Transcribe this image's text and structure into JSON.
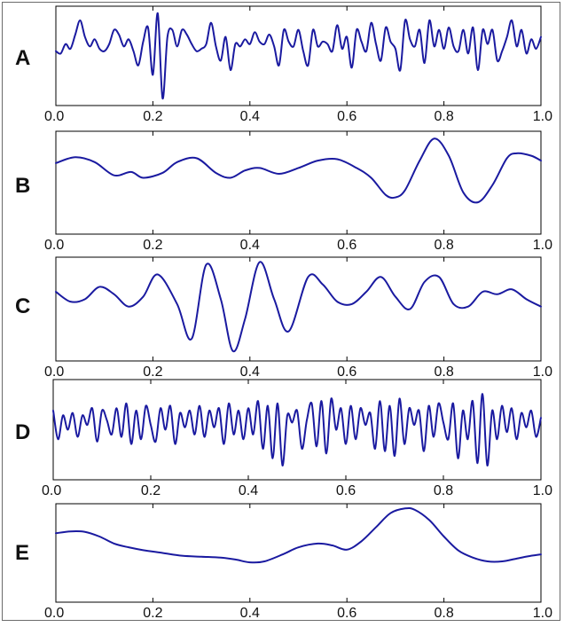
{
  "chart_data": [
    {
      "type": "line",
      "panel_label": "A",
      "xlim": [
        0.0,
        1.0
      ],
      "x_ticks": [
        "0.0",
        "0.2",
        "0.4",
        "0.6",
        "0.8",
        "1.0"
      ],
      "line_color": "#1a1aa0",
      "y_ticks_shown": false,
      "series": [
        {
          "x": [
            0.0,
            0.01,
            0.02,
            0.03,
            0.04,
            0.05,
            0.06,
            0.07,
            0.08,
            0.09,
            0.1,
            0.11,
            0.12,
            0.13,
            0.14,
            0.15,
            0.16,
            0.17,
            0.18,
            0.19,
            0.2,
            0.21,
            0.22,
            0.23,
            0.24,
            0.25,
            0.26,
            0.27,
            0.28,
            0.29,
            0.3,
            0.31,
            0.32,
            0.33,
            0.34,
            0.35,
            0.36,
            0.37,
            0.38,
            0.39,
            0.4,
            0.41,
            0.42,
            0.43,
            0.44,
            0.45,
            0.46,
            0.47,
            0.48,
            0.49,
            0.5,
            0.51,
            0.52,
            0.53,
            0.54,
            0.55,
            0.56,
            0.57,
            0.58,
            0.59,
            0.6,
            0.61,
            0.62,
            0.63,
            0.64,
            0.65,
            0.66,
            0.67,
            0.68,
            0.69,
            0.7,
            0.71,
            0.72,
            0.73,
            0.74,
            0.75,
            0.76,
            0.77,
            0.78,
            0.79,
            0.8,
            0.81,
            0.82,
            0.83,
            0.84,
            0.85,
            0.86,
            0.87,
            0.88,
            0.89,
            0.9,
            0.91,
            0.92,
            0.93,
            0.94,
            0.95,
            0.96,
            0.97,
            0.98,
            0.99,
            1.0
          ],
          "y": [
            0.1,
            0.05,
            0.25,
            0.15,
            0.45,
            0.75,
            0.4,
            0.2,
            0.35,
            0.15,
            0.1,
            0.25,
            0.55,
            0.45,
            0.2,
            0.35,
            0.1,
            -0.2,
            0.3,
            0.6,
            -0.4,
            0.9,
            -0.9,
            0.4,
            0.55,
            0.2,
            0.55,
            0.45,
            0.25,
            0.1,
            0.15,
            0.25,
            0.7,
            0.2,
            -0.1,
            0.4,
            -0.3,
            0.25,
            0.2,
            0.35,
            0.25,
            0.5,
            0.3,
            0.25,
            0.45,
            0.2,
            -0.2,
            0.55,
            0.3,
            0.2,
            0.55,
            0.1,
            -0.2,
            0.55,
            0.2,
            0.3,
            0.25,
            0.1,
            0.65,
            0.15,
            0.4,
            -0.25,
            0.55,
            0.3,
            0.1,
            0.7,
            0.25,
            -0.1,
            0.6,
            0.3,
            0.15,
            -0.3,
            0.75,
            0.35,
            0.2,
            0.55,
            -0.15,
            0.75,
            0.2,
            0.55,
            0.15,
            0.6,
            0.2,
            0.1,
            0.55,
            0.05,
            0.6,
            -0.3,
            0.55,
            0.25,
            0.55,
            -0.1,
            0.1,
            0.4,
            0.75,
            0.2,
            0.55,
            0.05,
            0.35,
            0.15,
            0.4
          ]
        }
      ]
    },
    {
      "type": "line",
      "panel_label": "B",
      "xlim": [
        0.0,
        1.0
      ],
      "x_ticks": [
        "0.0",
        "0.2",
        "0.4",
        "0.6",
        "0.8",
        "1.0"
      ],
      "line_color": "#1a1aa0",
      "y_ticks_shown": false,
      "series": [
        {
          "x": [
            0.0,
            0.04,
            0.08,
            0.12,
            0.155,
            0.18,
            0.22,
            0.25,
            0.29,
            0.33,
            0.36,
            0.39,
            0.42,
            0.46,
            0.5,
            0.54,
            0.58,
            0.62,
            0.65,
            0.68,
            0.7,
            0.72,
            0.75,
            0.78,
            0.81,
            0.84,
            0.87,
            0.9,
            0.93,
            0.95,
            0.98,
            1.0
          ],
          "y": [
            0.4,
            0.52,
            0.42,
            0.15,
            0.22,
            0.1,
            0.2,
            0.42,
            0.5,
            0.2,
            0.1,
            0.25,
            0.3,
            0.18,
            0.3,
            0.45,
            0.48,
            0.3,
            0.1,
            -0.25,
            -0.3,
            -0.15,
            0.45,
            0.9,
            0.55,
            -0.2,
            -0.4,
            -0.05,
            0.5,
            0.6,
            0.55,
            0.45
          ]
        }
      ]
    },
    {
      "type": "line",
      "panel_label": "C",
      "xlim": [
        0.0,
        1.0
      ],
      "x_ticks": [
        "0.0",
        "0.2",
        "0.4",
        "0.6",
        "0.8",
        "1.0"
      ],
      "line_color": "#1a1aa0",
      "y_ticks_shown": false,
      "series": [
        {
          "x": [
            0.0,
            0.03,
            0.06,
            0.09,
            0.12,
            0.15,
            0.18,
            0.21,
            0.25,
            0.28,
            0.31,
            0.34,
            0.365,
            0.39,
            0.42,
            0.45,
            0.48,
            0.52,
            0.55,
            0.58,
            0.61,
            0.64,
            0.67,
            0.7,
            0.73,
            0.76,
            0.79,
            0.82,
            0.85,
            0.88,
            0.91,
            0.94,
            0.97,
            1.0
          ],
          "y": [
            0.35,
            0.15,
            0.2,
            0.45,
            0.3,
            0.05,
            0.25,
            0.7,
            0.1,
            -0.6,
            0.9,
            0.2,
            -0.85,
            -0.2,
            0.95,
            0.2,
            -0.45,
            0.65,
            0.5,
            0.15,
            0.1,
            0.35,
            0.65,
            0.25,
            0.0,
            0.55,
            0.65,
            0.1,
            0.05,
            0.35,
            0.3,
            0.4,
            0.2,
            0.05
          ]
        }
      ]
    },
    {
      "type": "line",
      "panel_label": "D",
      "xlim": [
        0.0,
        1.0
      ],
      "x_ticks": [
        "0.0",
        "0.2",
        "0.4",
        "0.6",
        "0.8",
        "1.0"
      ],
      "line_color": "#1a1aa0",
      "y_ticks_shown": false,
      "series": [
        {
          "x": [
            0.0,
            0.01,
            0.02,
            0.03,
            0.04,
            0.05,
            0.06,
            0.07,
            0.08,
            0.09,
            0.1,
            0.11,
            0.12,
            0.13,
            0.14,
            0.15,
            0.16,
            0.17,
            0.18,
            0.19,
            0.2,
            0.21,
            0.22,
            0.23,
            0.24,
            0.25,
            0.26,
            0.27,
            0.28,
            0.29,
            0.3,
            0.31,
            0.32,
            0.33,
            0.34,
            0.35,
            0.36,
            0.37,
            0.38,
            0.39,
            0.4,
            0.41,
            0.42,
            0.43,
            0.44,
            0.45,
            0.46,
            0.47,
            0.48,
            0.49,
            0.5,
            0.51,
            0.52,
            0.53,
            0.54,
            0.55,
            0.56,
            0.57,
            0.58,
            0.59,
            0.6,
            0.61,
            0.62,
            0.63,
            0.64,
            0.65,
            0.66,
            0.67,
            0.68,
            0.69,
            0.7,
            0.71,
            0.72,
            0.73,
            0.74,
            0.75,
            0.76,
            0.77,
            0.78,
            0.79,
            0.8,
            0.81,
            0.82,
            0.83,
            0.84,
            0.85,
            0.86,
            0.87,
            0.88,
            0.89,
            0.9,
            0.91,
            0.92,
            0.93,
            0.94,
            0.95,
            0.96,
            0.97,
            0.98,
            0.99,
            1.0
          ],
          "y": [
            0.4,
            -0.2,
            0.3,
            0.0,
            0.35,
            -0.15,
            0.3,
            0.1,
            0.45,
            -0.25,
            0.4,
            0.2,
            -0.1,
            0.45,
            -0.15,
            0.55,
            -0.3,
            0.4,
            -0.2,
            0.5,
            0.1,
            -0.25,
            0.45,
            0.0,
            0.5,
            -0.3,
            0.35,
            0.05,
            0.4,
            -0.1,
            0.5,
            -0.15,
            0.4,
            0.05,
            0.45,
            -0.3,
            0.55,
            -0.1,
            0.4,
            -0.2,
            0.45,
            -0.1,
            0.6,
            -0.4,
            0.5,
            -0.6,
            0.55,
            -0.75,
            0.3,
            0.15,
            0.4,
            -0.4,
            0.2,
            0.55,
            -0.35,
            0.6,
            -0.5,
            0.65,
            0.0,
            0.45,
            -0.3,
            0.5,
            -0.2,
            0.45,
            0.1,
            0.35,
            -0.4,
            0.6,
            -0.45,
            0.5,
            -0.55,
            0.65,
            -0.3,
            0.45,
            0.1,
            0.4,
            -0.45,
            0.5,
            -0.15,
            0.55,
            0.15,
            -0.2,
            0.55,
            -0.6,
            0.4,
            -0.2,
            0.6,
            -0.7,
            0.75,
            -0.75,
            0.4,
            -0.2,
            0.5,
            -0.05,
            0.45,
            -0.2,
            0.35,
            0.05,
            0.4,
            -0.15,
            0.25
          ]
        }
      ]
    },
    {
      "type": "line",
      "panel_label": "E",
      "xlim": [
        0.0,
        1.0
      ],
      "x_ticks": [
        "0.0",
        "0.2",
        "0.4",
        "0.6",
        "0.8",
        "1.0"
      ],
      "line_color": "#1a1aa0",
      "y_ticks_shown": false,
      "series": [
        {
          "x": [
            0.0,
            0.03,
            0.06,
            0.09,
            0.12,
            0.15,
            0.18,
            0.22,
            0.26,
            0.3,
            0.34,
            0.37,
            0.4,
            0.43,
            0.47,
            0.5,
            0.54,
            0.57,
            0.6,
            0.63,
            0.66,
            0.69,
            0.72,
            0.74,
            0.77,
            0.8,
            0.83,
            0.86,
            0.89,
            0.92,
            0.95,
            0.98,
            1.0
          ],
          "y": [
            0.42,
            0.46,
            0.45,
            0.35,
            0.2,
            0.12,
            0.06,
            0.0,
            -0.06,
            -0.08,
            -0.1,
            -0.14,
            -0.2,
            -0.18,
            -0.02,
            0.12,
            0.2,
            0.16,
            0.07,
            0.25,
            0.55,
            0.85,
            0.95,
            0.92,
            0.7,
            0.35,
            0.05,
            -0.1,
            -0.18,
            -0.18,
            -0.12,
            -0.06,
            -0.03
          ]
        }
      ]
    }
  ]
}
